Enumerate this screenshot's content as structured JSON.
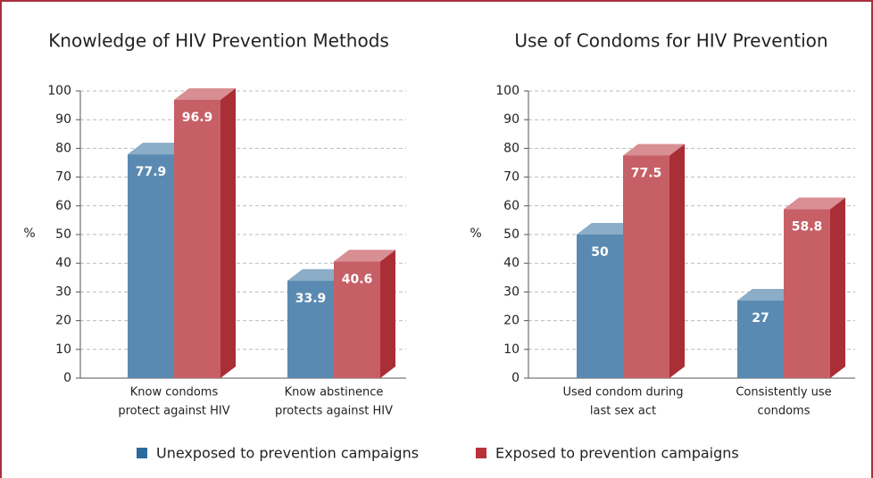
{
  "chart_data": [
    {
      "type": "bar3d",
      "title": "Knowledge of HIV Prevention Methods",
      "y_label": "%",
      "categories": [
        [
          "Know condoms",
          "protect against HIV"
        ],
        [
          "Know abstinence",
          "protects against HIV"
        ]
      ],
      "series": [
        {
          "values": [
            77.9,
            33.9
          ]
        },
        {
          "values": [
            96.9,
            40.6
          ]
        }
      ],
      "ylim": [
        0,
        100
      ],
      "yticks": [
        0,
        10,
        20,
        30,
        40,
        50,
        60,
        70,
        80,
        90,
        100
      ],
      "grid": true
    },
    {
      "type": "bar3d",
      "title": "Use of Condoms for HIV Prevention",
      "y_label": "%",
      "categories": [
        [
          "Used condom during",
          "last sex act"
        ],
        [
          "Consistently use",
          "condoms"
        ]
      ],
      "series": [
        {
          "values": [
            50,
            27
          ]
        },
        {
          "values": [
            77.5,
            58.8
          ]
        }
      ],
      "ylim": [
        0,
        100
      ],
      "yticks": [
        0,
        10,
        20,
        30,
        40,
        50,
        60,
        70,
        80,
        90,
        100
      ],
      "grid": true
    }
  ],
  "legend": [
    {
      "name": "Unexposed to prevention campaigns",
      "color": "#2c6a9c"
    },
    {
      "name": "Exposed to prevention campaigns",
      "color": "#b8323b"
    }
  ]
}
